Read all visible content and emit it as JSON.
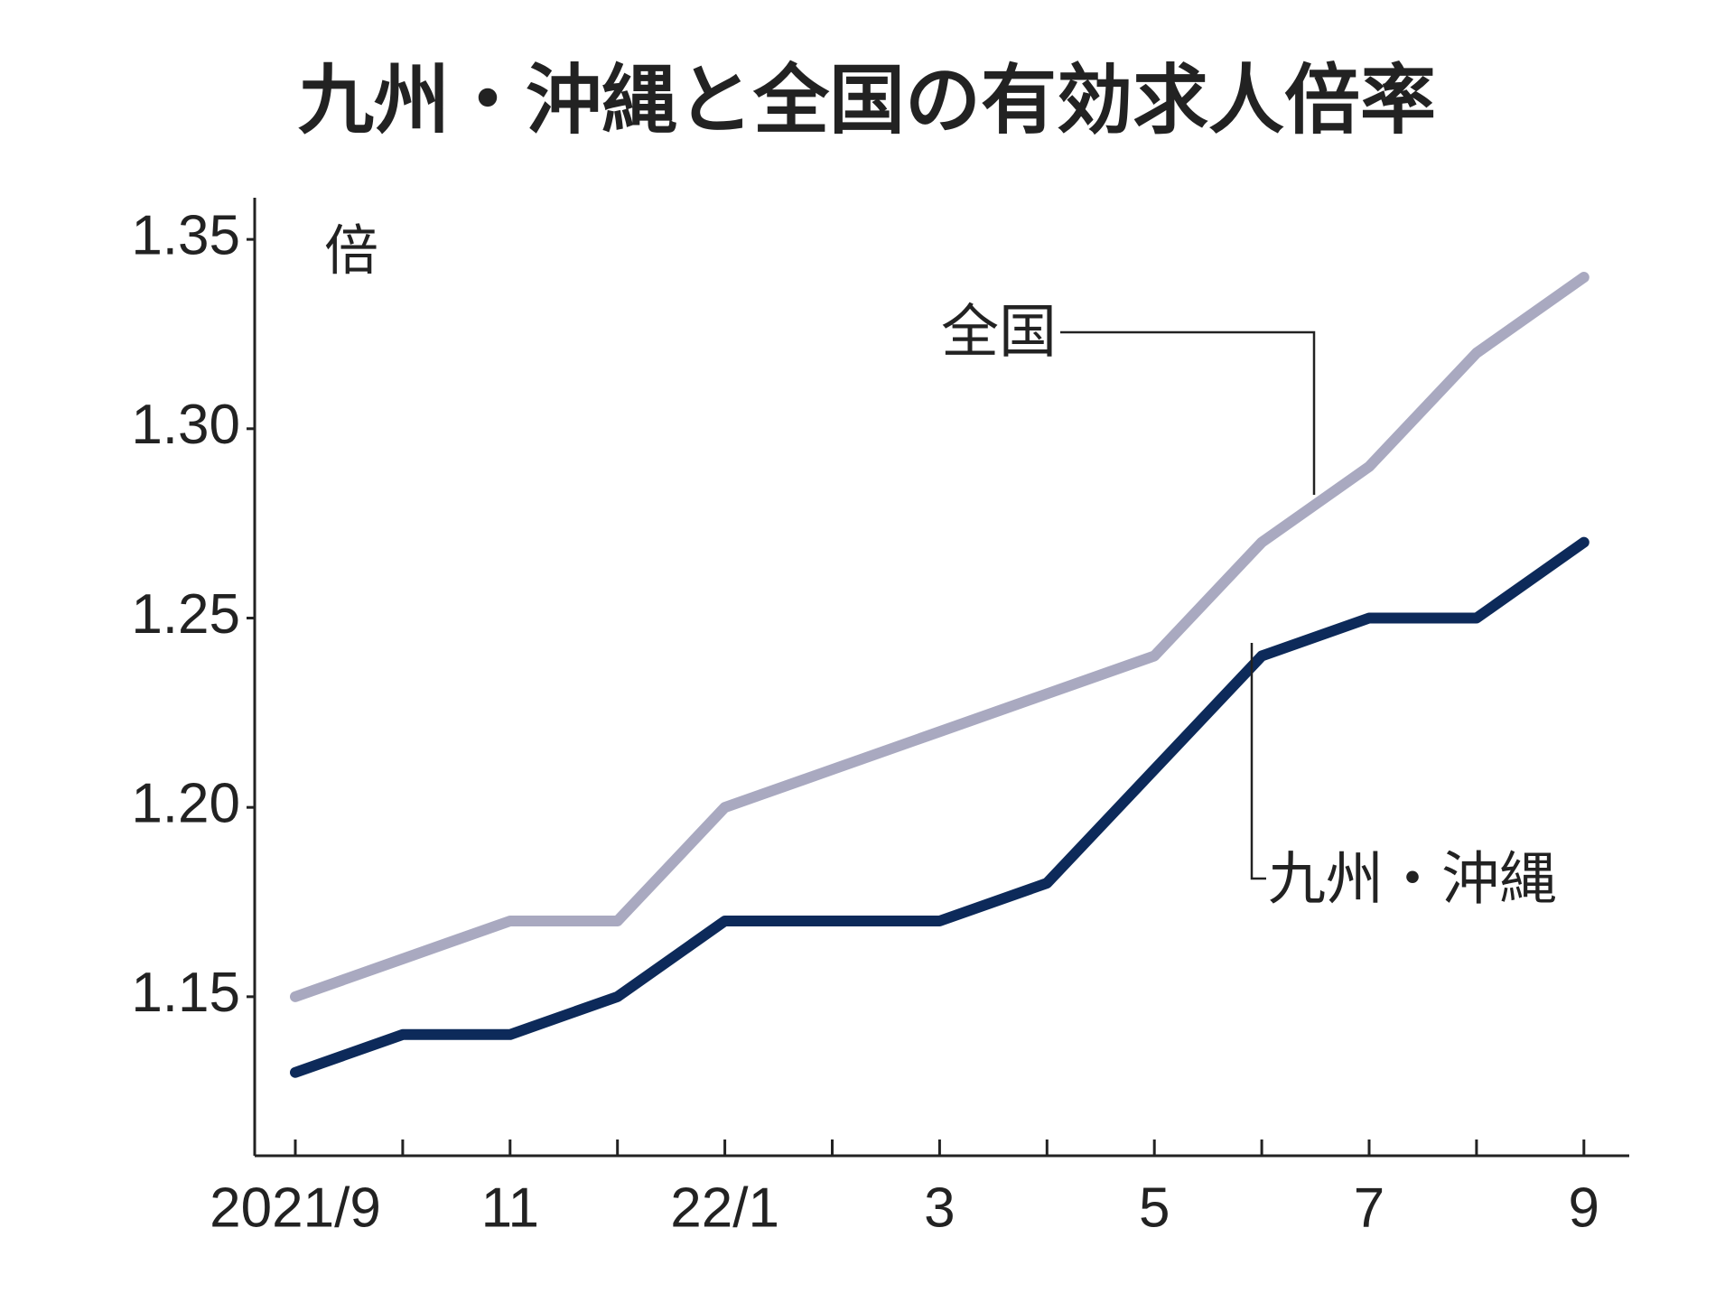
{
  "chart_data": {
    "type": "line",
    "title": "九州・沖縄と全国の有効求人倍率",
    "y_unit": "倍",
    "categories": [
      "2021/9",
      null,
      "11",
      null,
      "22/1",
      null,
      "3",
      null,
      "5",
      null,
      "7",
      null,
      "9"
    ],
    "series": [
      {
        "name": "全国",
        "color": "#a9a9c0",
        "values": [
          1.15,
          1.16,
          1.17,
          1.17,
          1.2,
          1.21,
          1.22,
          1.23,
          1.24,
          1.27,
          1.29,
          1.32,
          1.34
        ]
      },
      {
        "name": "九州・沖縄",
        "color": "#0d2a5a",
        "values": [
          1.13,
          1.14,
          1.14,
          1.15,
          1.17,
          1.17,
          1.17,
          1.18,
          1.21,
          1.24,
          1.25,
          1.25,
          1.27
        ]
      }
    ],
    "ylim": [
      1.108,
      1.361
    ],
    "yticks": [
      1.15,
      {
        "value": 1.2,
        "label": "1.20"
      },
      1.25,
      {
        "value": 1.3,
        "label": "1.30"
      },
      1.35
    ],
    "grid": false
  }
}
